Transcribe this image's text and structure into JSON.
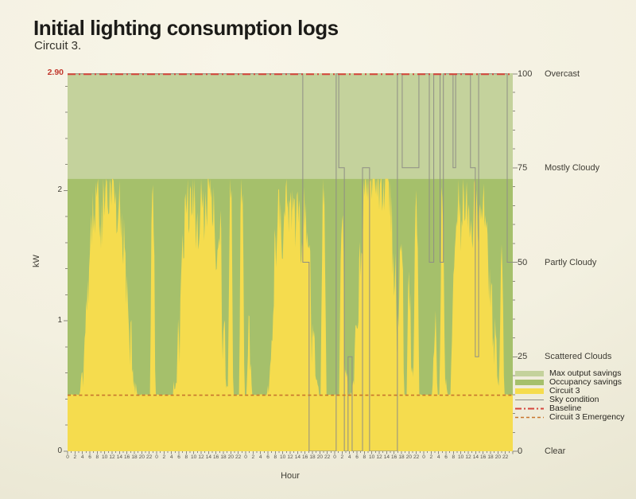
{
  "header": {
    "title": "Initial lighting consumption logs",
    "subtitle": "Circuit 3."
  },
  "colors": {
    "background": "#f2efdf",
    "max_output_area": "#c4d29c",
    "occupancy_area": "#a5c06b",
    "circuit3_area": "#f5dc4e",
    "sky_line": "#8f8e85",
    "baseline_line": "#d6453c",
    "emergency_line": "#c8752c",
    "baseline_label_text": "#c2392e",
    "axis_text": "#3f3d35",
    "tick_mark": "#8b897c"
  },
  "chart_data": {
    "type": "area",
    "title": "Initial lighting consumption logs",
    "subtitle": "Circuit 3.",
    "xlabel": "Hour",
    "ylabel_left": "kW",
    "x_hours_total": 120,
    "days": 5,
    "x_tick_step_hours": 2,
    "ylim_left": [
      0,
      2.9
    ],
    "left_ticks": [
      0,
      1,
      2
    ],
    "baseline": {
      "label": "2.90",
      "value": 2.9
    },
    "emergency_value": 0.43,
    "max_output_value": 2.09,
    "right_axis": {
      "range": [
        0,
        100
      ],
      "minor_tick_step": 5,
      "ticks": [
        {
          "value": 0,
          "label": "Clear"
        },
        {
          "value": 25,
          "label": "Scattered Clouds"
        },
        {
          "value": 50,
          "label": "Partly Cloudy"
        },
        {
          "value": 75,
          "label": "Mostly Cloudy"
        },
        {
          "value": 100,
          "label": "Overcast"
        }
      ]
    },
    "series": [
      {
        "name": "Circuit 3",
        "unit": "kW",
        "resolution": "hourly",
        "values": [
          0.43,
          0.43,
          0.43,
          0.43,
          0.55,
          1.0,
          1.5,
          1.85,
          2.0,
          1.75,
          2.05,
          1.9,
          2.0,
          1.8,
          1.95,
          1.6,
          1.3,
          0.9,
          0.5,
          0.43,
          0.43,
          0.43,
          0.43,
          1.9,
          0.43,
          0.43,
          0.43,
          0.43,
          0.43,
          0.5,
          0.8,
          1.6,
          1.95,
          1.8,
          2.0,
          1.7,
          1.95,
          1.85,
          2.0,
          1.9,
          1.6,
          1.75,
          0.9,
          0.5,
          1.9,
          0.43,
          0.43,
          2.0,
          0.43,
          0.85,
          0.43,
          0.43,
          0.43,
          0.43,
          0.5,
          0.9,
          1.5,
          1.9,
          1.6,
          2.0,
          1.85,
          1.75,
          1.95,
          1.6,
          1.8,
          1.5,
          0.9,
          0.6,
          0.43,
          1.9,
          0.43,
          0.43,
          0.43,
          0.43,
          1.7,
          0.6,
          0.43,
          0.5,
          0.9,
          1.4,
          1.9,
          2.02,
          2.06,
          2.04,
          2.07,
          2.05,
          2.0,
          1.9,
          1.4,
          0.9,
          1.65,
          0.43,
          1.2,
          0.6,
          1.8,
          0.43,
          0.43,
          0.43,
          0.43,
          0.9,
          0.43,
          1.8,
          0.5,
          0.43,
          1.3,
          1.9,
          1.7,
          2.0,
          1.85,
          1.8,
          1.95,
          1.7,
          1.85,
          1.6,
          1.3,
          0.9,
          0.55,
          1.4,
          0.43,
          0.43
        ]
      },
      {
        "name": "Sky condition",
        "unit": "cloud index (0-100)",
        "step_points": [
          [
            0,
            100
          ],
          [
            63.4,
            50
          ],
          [
            65.1,
            0
          ],
          [
            72.4,
            100
          ],
          [
            73.1,
            75
          ],
          [
            74.6,
            0
          ],
          [
            75.6,
            25
          ],
          [
            76.7,
            0
          ],
          [
            79.5,
            75
          ],
          [
            81.4,
            0
          ],
          [
            88.9,
            100
          ],
          [
            90.2,
            75
          ],
          [
            94.7,
            100
          ],
          [
            97.5,
            50
          ],
          [
            98.7,
            100
          ],
          [
            100.4,
            50
          ],
          [
            101.3,
            100
          ],
          [
            103.9,
            75
          ],
          [
            104.6,
            100
          ],
          [
            108.6,
            75
          ],
          [
            109.9,
            25
          ],
          [
            110.8,
            100
          ],
          [
            118.5,
            50
          ]
        ]
      }
    ],
    "legend": [
      {
        "label": "Max output savings",
        "swatch": "area",
        "color": "#c4d29c"
      },
      {
        "label": "Occupancy savings",
        "swatch": "area",
        "color": "#a5c06b"
      },
      {
        "label": "Circuit 3",
        "swatch": "area",
        "color": "#f5dc4e"
      },
      {
        "label": "Sky condition",
        "swatch": "line",
        "color": "#8f8e85",
        "dash": "",
        "width": 1
      },
      {
        "label": "Baseline",
        "swatch": "line",
        "color": "#d6453c",
        "dash": "8 3 2 3",
        "width": 2
      },
      {
        "label": "Circuit 3 Emergency",
        "swatch": "line",
        "color": "#c8752c",
        "dash": "4 3",
        "width": 1.5
      }
    ],
    "legend_position": "right",
    "grid": false
  }
}
